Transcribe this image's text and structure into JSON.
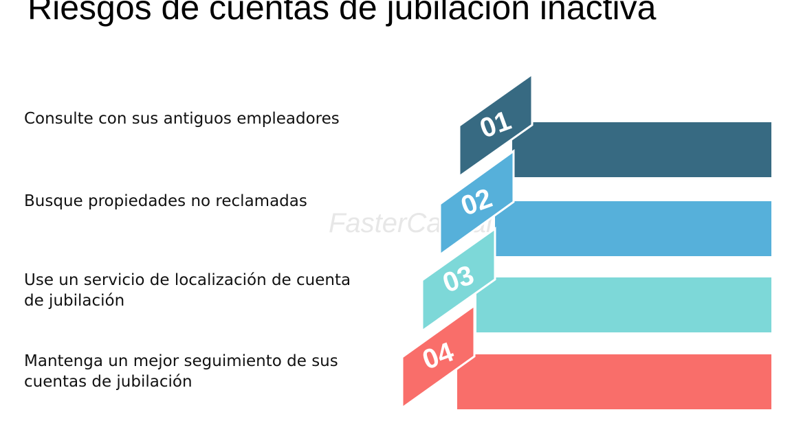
{
  "title": "Riesgos de cuentas de jubilación inactiva",
  "watermark": "FasterCapital",
  "items": [
    {
      "number": "01",
      "lines": [
        "Consulte con sus antiguos empleadores"
      ],
      "color": "#376a82"
    },
    {
      "number": "02",
      "lines": [
        "Busque propiedades no reclamadas"
      ],
      "color": "#56b0da"
    },
    {
      "number": "03",
      "lines": [
        "Use un servicio de localización de cuenta",
        "de jubilación"
      ],
      "color": "#7dd8d8"
    },
    {
      "number": "04",
      "lines": [
        "Mantenga un mejor seguimiento de sus",
        "cuentas de jubilación"
      ],
      "color": "#f96e6a"
    }
  ]
}
